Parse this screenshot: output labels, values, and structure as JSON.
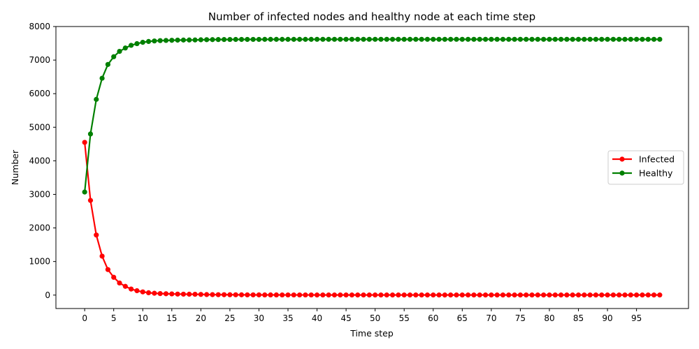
{
  "chart_data": {
    "type": "line",
    "title": "Number of infected nodes and healthy node at each time step",
    "xlabel": "Time step",
    "ylabel": "Number",
    "xlim": [
      -4.95,
      103.95
    ],
    "ylim": [
      -400,
      8000
    ],
    "xticks": [
      0,
      5,
      10,
      15,
      20,
      25,
      30,
      35,
      40,
      45,
      50,
      55,
      60,
      65,
      70,
      75,
      80,
      85,
      90,
      95
    ],
    "yticks": [
      0,
      1000,
      2000,
      3000,
      4000,
      5000,
      6000,
      7000,
      8000
    ],
    "grid": false,
    "legend_position": "center-right",
    "x": [
      0,
      1,
      2,
      3,
      4,
      5,
      6,
      7,
      8,
      9,
      10,
      11,
      12,
      13,
      14,
      15,
      16,
      17,
      18,
      19,
      20,
      21,
      22,
      23,
      24,
      25,
      26,
      27,
      28,
      29,
      30,
      31,
      32,
      33,
      34,
      35,
      36,
      37,
      38,
      39,
      40,
      41,
      42,
      43,
      44,
      45,
      46,
      47,
      48,
      49,
      50,
      51,
      52,
      53,
      54,
      55,
      56,
      57,
      58,
      59,
      60,
      61,
      62,
      63,
      64,
      65,
      66,
      67,
      68,
      69,
      70,
      71,
      72,
      73,
      74,
      75,
      76,
      77,
      78,
      79,
      80,
      81,
      82,
      83,
      84,
      85,
      86,
      87,
      88,
      89,
      90,
      91,
      92,
      93,
      94,
      95,
      96,
      97,
      98,
      99
    ],
    "series": [
      {
        "name": "Infected",
        "color": "#ff0000",
        "values": [
          4550,
          2820,
          1790,
          1160,
          760,
          530,
          360,
          260,
          180,
          130,
          95,
          70,
          55,
          45,
          40,
          35,
          30,
          28,
          26,
          24,
          20,
          16,
          14,
          12,
          11,
          10,
          9,
          8,
          7,
          6,
          6,
          5,
          5,
          5,
          4,
          4,
          4,
          4,
          4,
          4,
          3,
          3,
          3,
          3,
          3,
          3,
          3,
          3,
          3,
          3,
          3,
          3,
          3,
          3,
          3,
          3,
          3,
          3,
          3,
          3,
          3,
          3,
          3,
          3,
          3,
          3,
          3,
          3,
          3,
          3,
          3,
          3,
          3,
          3,
          3,
          3,
          3,
          3,
          3,
          3,
          3,
          3,
          3,
          3,
          3,
          3,
          3,
          3,
          3,
          3,
          3,
          3,
          3,
          3,
          3,
          3,
          3,
          3,
          3,
          3
        ]
      },
      {
        "name": "Healthy",
        "color": "#008000",
        "values": [
          3070,
          4800,
          5830,
          6460,
          6870,
          7100,
          7260,
          7360,
          7440,
          7490,
          7530,
          7555,
          7570,
          7580,
          7585,
          7590,
          7595,
          7597,
          7599,
          7600,
          7605,
          7608,
          7610,
          7612,
          7613,
          7614,
          7615,
          7616,
          7616,
          7617,
          7617,
          7618,
          7618,
          7618,
          7618,
          7618,
          7618,
          7618,
          7618,
          7618,
          7619,
          7619,
          7619,
          7619,
          7619,
          7619,
          7619,
          7619,
          7619,
          7619,
          7619,
          7619,
          7619,
          7619,
          7619,
          7619,
          7619,
          7619,
          7619,
          7619,
          7619,
          7619,
          7619,
          7619,
          7619,
          7619,
          7619,
          7619,
          7619,
          7619,
          7619,
          7619,
          7619,
          7619,
          7619,
          7619,
          7619,
          7619,
          7619,
          7619,
          7619,
          7619,
          7619,
          7619,
          7619,
          7619,
          7619,
          7619,
          7619,
          7619,
          7619,
          7619,
          7619,
          7619,
          7619,
          7619,
          7619,
          7619,
          7619,
          7619
        ]
      }
    ]
  }
}
